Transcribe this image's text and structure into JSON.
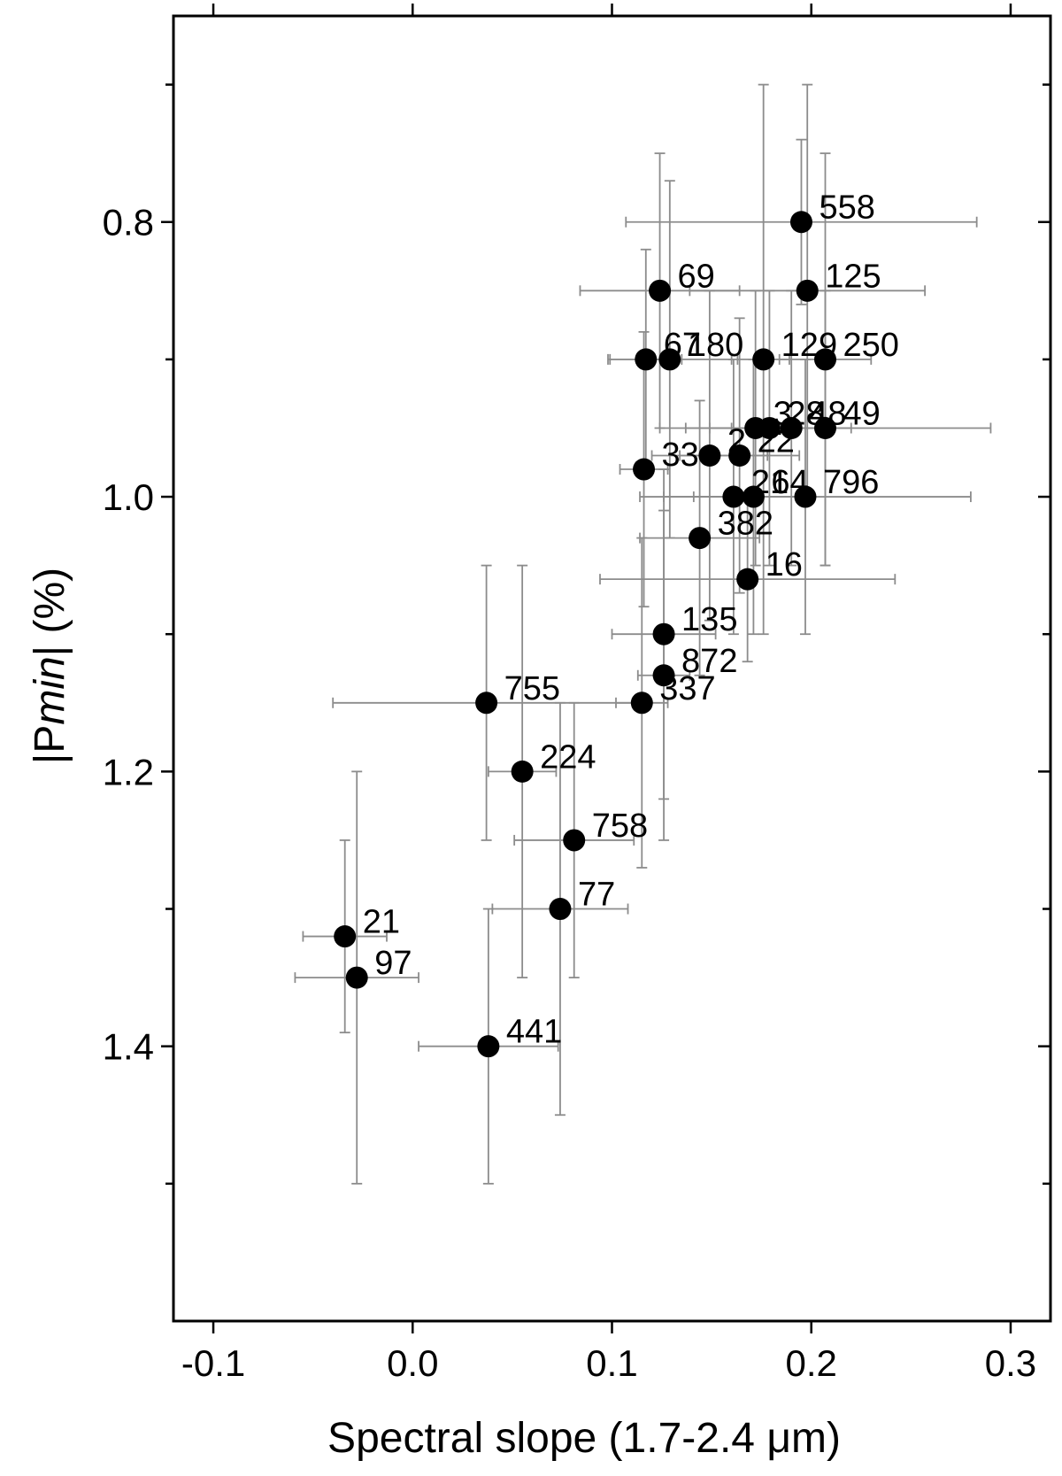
{
  "chart_data": {
    "type": "scatter",
    "xlabel": "Spectral slope (1.7-2.4 μm)",
    "ylabel": {
      "prefix": "|P",
      "subscript": "min",
      "suffix": "| (%)"
    },
    "xlim": [
      -0.12,
      0.32
    ],
    "ylim": [
      1.6,
      0.65
    ],
    "y_inverted": true,
    "xticks": [
      -0.1,
      0.0,
      0.1,
      0.2,
      0.3
    ],
    "xtick_labels": [
      "-0.1",
      "0.0",
      "0.1",
      "0.2",
      "0.3"
    ],
    "yticks": [
      0.8,
      1.0,
      1.2,
      1.4
    ],
    "ytick_labels": [
      "0.8",
      "1.0",
      "1.2",
      "1.4"
    ],
    "y_minor_ticks": [
      0.7,
      0.9,
      1.1,
      1.3,
      1.5
    ],
    "grid": false,
    "marker_color": "#000000",
    "errorbar_color": "#8c8c8c",
    "points": [
      {
        "label": "558",
        "x": 0.195,
        "y": 0.8,
        "xerr": 0.088,
        "yerr": 0.06
      },
      {
        "label": "125",
        "x": 0.198,
        "y": 0.85,
        "xerr": 0.059,
        "yerr": 0.15
      },
      {
        "label": "69",
        "x": 0.124,
        "y": 0.85,
        "xerr": 0.04,
        "yerr": 0.1
      },
      {
        "label": "67",
        "x": 0.117,
        "y": 0.9,
        "xerr": 0.018,
        "yerr": 0.08
      },
      {
        "label": "180",
        "x": 0.129,
        "y": 0.9,
        "xerr": 0.031,
        "yerr": 0.13
      },
      {
        "label": "129",
        "x": 0.176,
        "y": 0.9,
        "xerr": 0.013,
        "yerr": 0.2
      },
      {
        "label": "250",
        "x": 0.207,
        "y": 0.9,
        "xerr": 0.023,
        "yerr": 0.15
      },
      {
        "label": "3",
        "x": 0.172,
        "y": 0.95,
        "xerr": 0.035,
        "yerr": 0.1
      },
      {
        "label": "28",
        "x": 0.179,
        "y": 0.95,
        "xerr": 0.03,
        "yerr": 0.1
      },
      {
        "label": "48",
        "x": 0.19,
        "y": 0.95,
        "xerr": 0.03,
        "yerr": 0.1
      },
      {
        "label": "49",
        "x": 0.207,
        "y": 0.95,
        "xerr": 0.083,
        "yerr": 0.1
      },
      {
        "label": "33",
        "x": 0.116,
        "y": 0.98,
        "xerr": 0.012,
        "yerr": 0.1
      },
      {
        "label": "2",
        "x": 0.149,
        "y": 0.97,
        "xerr": 0.029,
        "yerr": 0.12
      },
      {
        "label": "22",
        "x": 0.164,
        "y": 0.97,
        "xerr": 0.03,
        "yerr": 0.1
      },
      {
        "label": "21",
        "x": 0.161,
        "y": 1.0,
        "xerr": 0.035,
        "yerr": 0.1
      },
      {
        "label": "64",
        "x": 0.171,
        "y": 1.0,
        "xerr": 0.03,
        "yerr": 0.1
      },
      {
        "label": "796",
        "x": 0.197,
        "y": 1.0,
        "xerr": 0.083,
        "yerr": 0.1
      },
      {
        "label": "382",
        "x": 0.144,
        "y": 1.03,
        "xerr": 0.03,
        "yerr": 0.1
      },
      {
        "label": "16",
        "x": 0.168,
        "y": 1.06,
        "xerr": 0.074,
        "yerr": 0.06
      },
      {
        "label": "135",
        "x": 0.126,
        "y": 1.1,
        "xerr": 0.026,
        "yerr": 0.12
      },
      {
        "label": "872",
        "x": 0.126,
        "y": 1.13,
        "xerr": 0.013,
        "yerr": 0.12
      },
      {
        "label": "337",
        "x": 0.115,
        "y": 1.15,
        "xerr": 0.013,
        "yerr": 0.12
      },
      {
        "label": "755",
        "x": 0.037,
        "y": 1.15,
        "xerr": 0.077,
        "yerr": 0.1
      },
      {
        "label": "224",
        "x": 0.055,
        "y": 1.2,
        "xerr": 0.017,
        "yerr": 0.15
      },
      {
        "label": "758",
        "x": 0.081,
        "y": 1.25,
        "xerr": 0.03,
        "yerr": 0.1
      },
      {
        "label": "77",
        "x": 0.074,
        "y": 1.3,
        "xerr": 0.034,
        "yerr": 0.15
      },
      {
        "label": "21",
        "x": -0.034,
        "y": 1.32,
        "xerr": 0.021,
        "yerr": 0.07
      },
      {
        "label": "97",
        "x": -0.028,
        "y": 1.35,
        "xerr": 0.031,
        "yerr": 0.15
      },
      {
        "label": "441",
        "x": 0.038,
        "y": 1.4,
        "xerr": 0.035,
        "yerr": 0.1
      }
    ]
  }
}
